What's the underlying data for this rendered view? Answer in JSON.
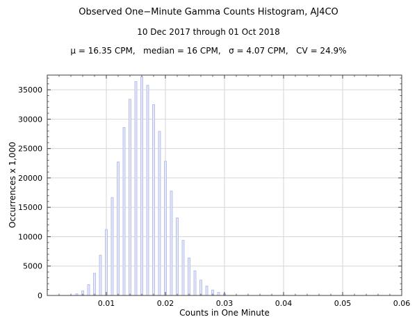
{
  "chart_data": {
    "type": "bar",
    "title": "Observed One−Minute Gamma Counts Histogram, AJ4CO",
    "subtitle": "10 Dec 2017 through 01 Oct 2018",
    "annotation": "μ = 16.35 CPM,   median = 16 CPM,   σ = 4.07 CPM,   CV = 24.9%",
    "xlabel": "Counts in One Minute",
    "ylabel": "Occurrences x 1,000",
    "xlim": [
      0,
      0.06
    ],
    "ylim": [
      0,
      37500
    ],
    "x_ticks": [
      0.01,
      0.02,
      0.03,
      0.04,
      0.05,
      0.06
    ],
    "x_tick_labels": [
      "0.01",
      "0.02",
      "0.03",
      "0.04",
      "0.05",
      "0.06"
    ],
    "y_ticks": [
      0,
      5000,
      10000,
      15000,
      20000,
      25000,
      30000,
      35000
    ],
    "x_minor_step": 0.002,
    "y_minor_step": 1000,
    "grid": true,
    "legend": "none",
    "x_scale": 0.001,
    "counts_cpm": [
      5,
      6,
      7,
      8,
      9,
      10,
      11,
      12,
      13,
      14,
      15,
      16,
      17,
      18,
      19,
      20,
      21,
      22,
      23,
      24,
      25,
      26,
      27,
      28,
      29,
      30
    ],
    "values": [
      290,
      790,
      1850,
      3780,
      6860,
      11230,
      16670,
      22720,
      28580,
      33380,
      36400,
      37200,
      35760,
      32470,
      27930,
      22830,
      17770,
      13190,
      9380,
      6390,
      4180,
      2630,
      1590,
      930,
      520,
      290
    ],
    "bar_fill": "#e4e8f8",
    "bar_edge": "#aab4e6",
    "grid_color": "#d6d6d6",
    "frame_color": "#3c3c3c"
  }
}
